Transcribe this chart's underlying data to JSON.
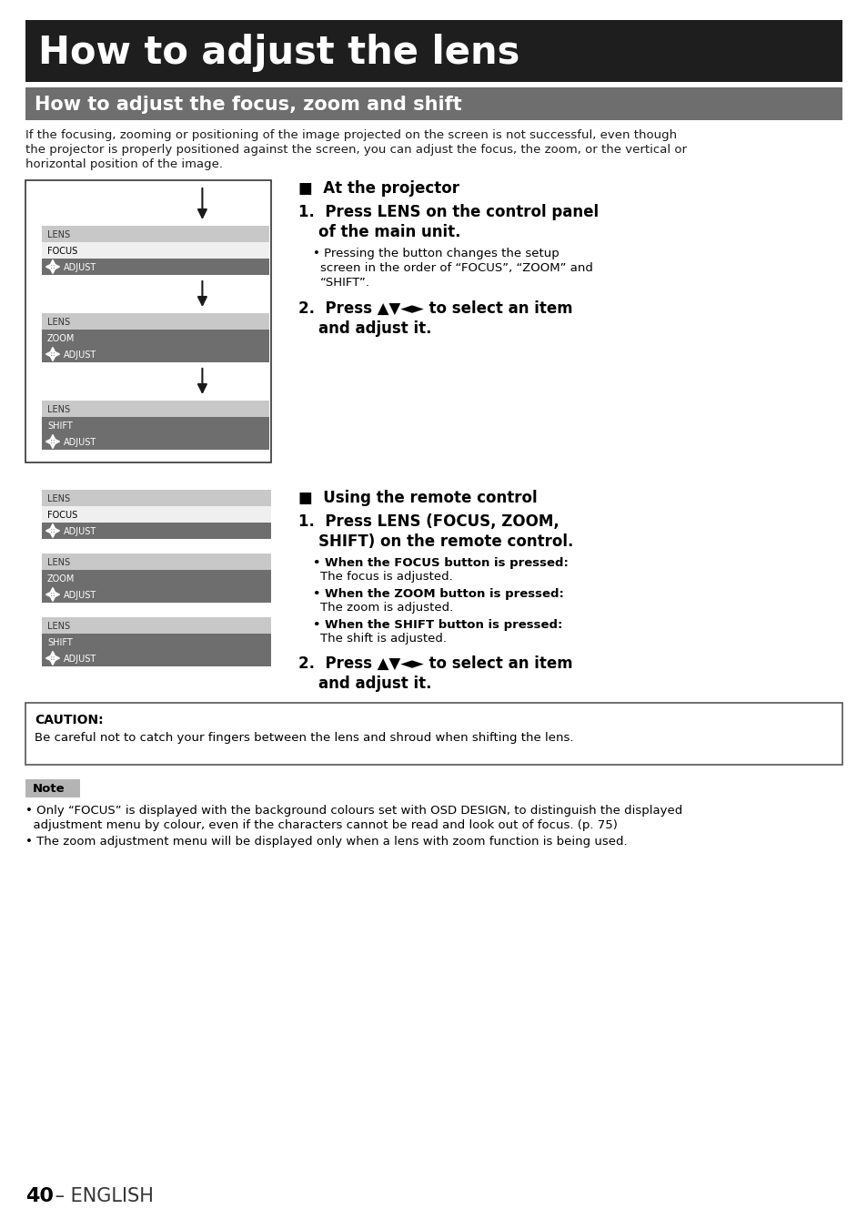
{
  "title_main": "How to adjust the lens",
  "title_sub": "How to adjust the focus, zoom and shift",
  "body_line1": "If the focusing, zooming or positioning of the image projected on the screen is not successful, even though",
  "body_line2": "the projector is properly positioned against the screen, you can adjust the focus, the zoom, or the vertical or",
  "body_line3": "horizontal position of the image.",
  "page_number": "40",
  "page_suffix": " – ENGLISH",
  "bg_color": "#ffffff",
  "title_main_bg": "#1e1e1e",
  "title_main_fg": "#ffffff",
  "title_sub_bg": "#6e6e6e",
  "title_sub_fg": "#ffffff",
  "note_bg": "#b4b4b4",
  "menu_header_bg": "#c8c8c8",
  "menu_focus_bg": "#efefef",
  "menu_focus_fg": "#000000",
  "menu_body_bg": "#6e6e6e",
  "menu_body_fg": "#ffffff",
  "menu_zoom_bg": "#8c8c8c",
  "menu_zoom_fg": "#d0d0d0"
}
